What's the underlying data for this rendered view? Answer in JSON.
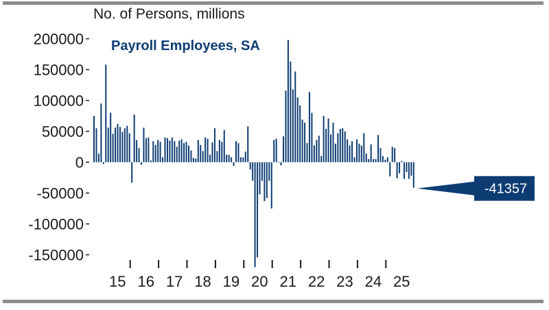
{
  "chart_data": {
    "type": "bar",
    "title": "Payroll Employees, SA",
    "ylabel": "No. of Persons, millions",
    "ylim": [
      -160000,
      210000
    ],
    "yticks": [
      200000,
      150000,
      100000,
      50000,
      0,
      -50000,
      -100000,
      -150000
    ],
    "ytick_labels": [
      "200000",
      "150000",
      "100000",
      "50000",
      "0",
      "-50000",
      "-100000",
      "-150000"
    ],
    "xtick_labels": [
      "15",
      "16",
      "17",
      "18",
      "19",
      "20",
      "21",
      "22",
      "23",
      "24",
      "25"
    ],
    "x_start_year": 2014,
    "x_start_month": 9,
    "last_value_label": "-41357",
    "colors": {
      "bar": "#0d3c73",
      "callout": "#0d3c73",
      "text": "#1a1a1a",
      "rule": "#8c8c8c"
    },
    "values": [
      75000,
      55000,
      14000,
      95000,
      -3000,
      158000,
      56000,
      80000,
      46000,
      56000,
      62000,
      57000,
      49000,
      55000,
      59000,
      47000,
      -33000,
      77000,
      36000,
      23000,
      -4000,
      56000,
      39000,
      40000,
      3000,
      34000,
      28000,
      36000,
      33000,
      8000,
      40000,
      39000,
      35000,
      40000,
      34000,
      25000,
      35000,
      37000,
      31000,
      33000,
      27000,
      19000,
      7000,
      6000,
      36000,
      28000,
      18000,
      40000,
      38000,
      12000,
      32000,
      55000,
      18000,
      36000,
      33000,
      52000,
      12000,
      12000,
      8000,
      -6000,
      34000,
      31000,
      8000,
      8000,
      17000,
      58000,
      -12000,
      -30000,
      -170000,
      -154000,
      -52000,
      -30000,
      -63000,
      -58000,
      -30000,
      -75000,
      36000,
      38000,
      1000,
      -5000,
      42000,
      116000,
      198000,
      163000,
      118000,
      147000,
      105000,
      92000,
      69000,
      64000,
      31000,
      114000,
      80000,
      27000,
      36000,
      43000,
      10000,
      75000,
      54000,
      71000,
      45000,
      64000,
      30000,
      47000,
      54000,
      55000,
      50000,
      37000,
      27000,
      34000,
      8000,
      37000,
      30000,
      27000,
      47000,
      14000,
      5000,
      29000,
      5000,
      5000,
      44000,
      23000,
      10000,
      4000,
      8000,
      -23000,
      25000,
      23000,
      -26000,
      -18000,
      2000,
      -27000,
      -16000,
      -27000,
      -22000,
      -41357
    ]
  }
}
